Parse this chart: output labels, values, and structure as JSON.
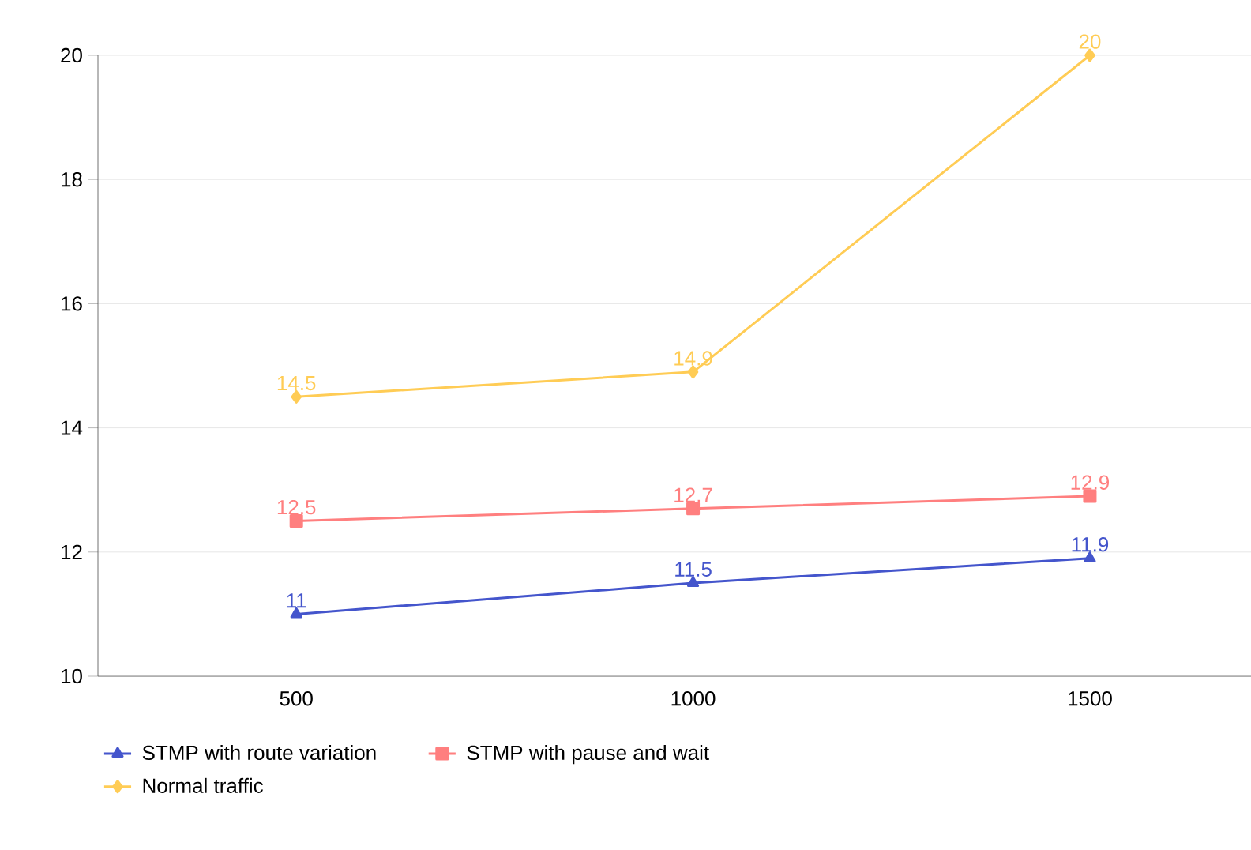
{
  "chart_data": {
    "type": "line",
    "categories": [
      "500",
      "1000",
      "1500"
    ],
    "series": [
      {
        "name": "STMP with route variation",
        "color": "#4455cc",
        "marker": "triangle",
        "values": [
          11,
          11.5,
          11.9
        ]
      },
      {
        "name": "STMP with pause and wait",
        "color": "#ff7f7f",
        "marker": "square",
        "values": [
          12.5,
          12.7,
          12.9
        ]
      },
      {
        "name": "Normal traffic",
        "color": "#ffcc55",
        "marker": "diamond",
        "values": [
          14.5,
          14.9,
          20
        ]
      }
    ],
    "ylim": [
      10,
      20
    ],
    "yticks": [
      10,
      12,
      14,
      16,
      18,
      20
    ],
    "grid": "y",
    "legend": "bottom",
    "data_labels": true
  }
}
